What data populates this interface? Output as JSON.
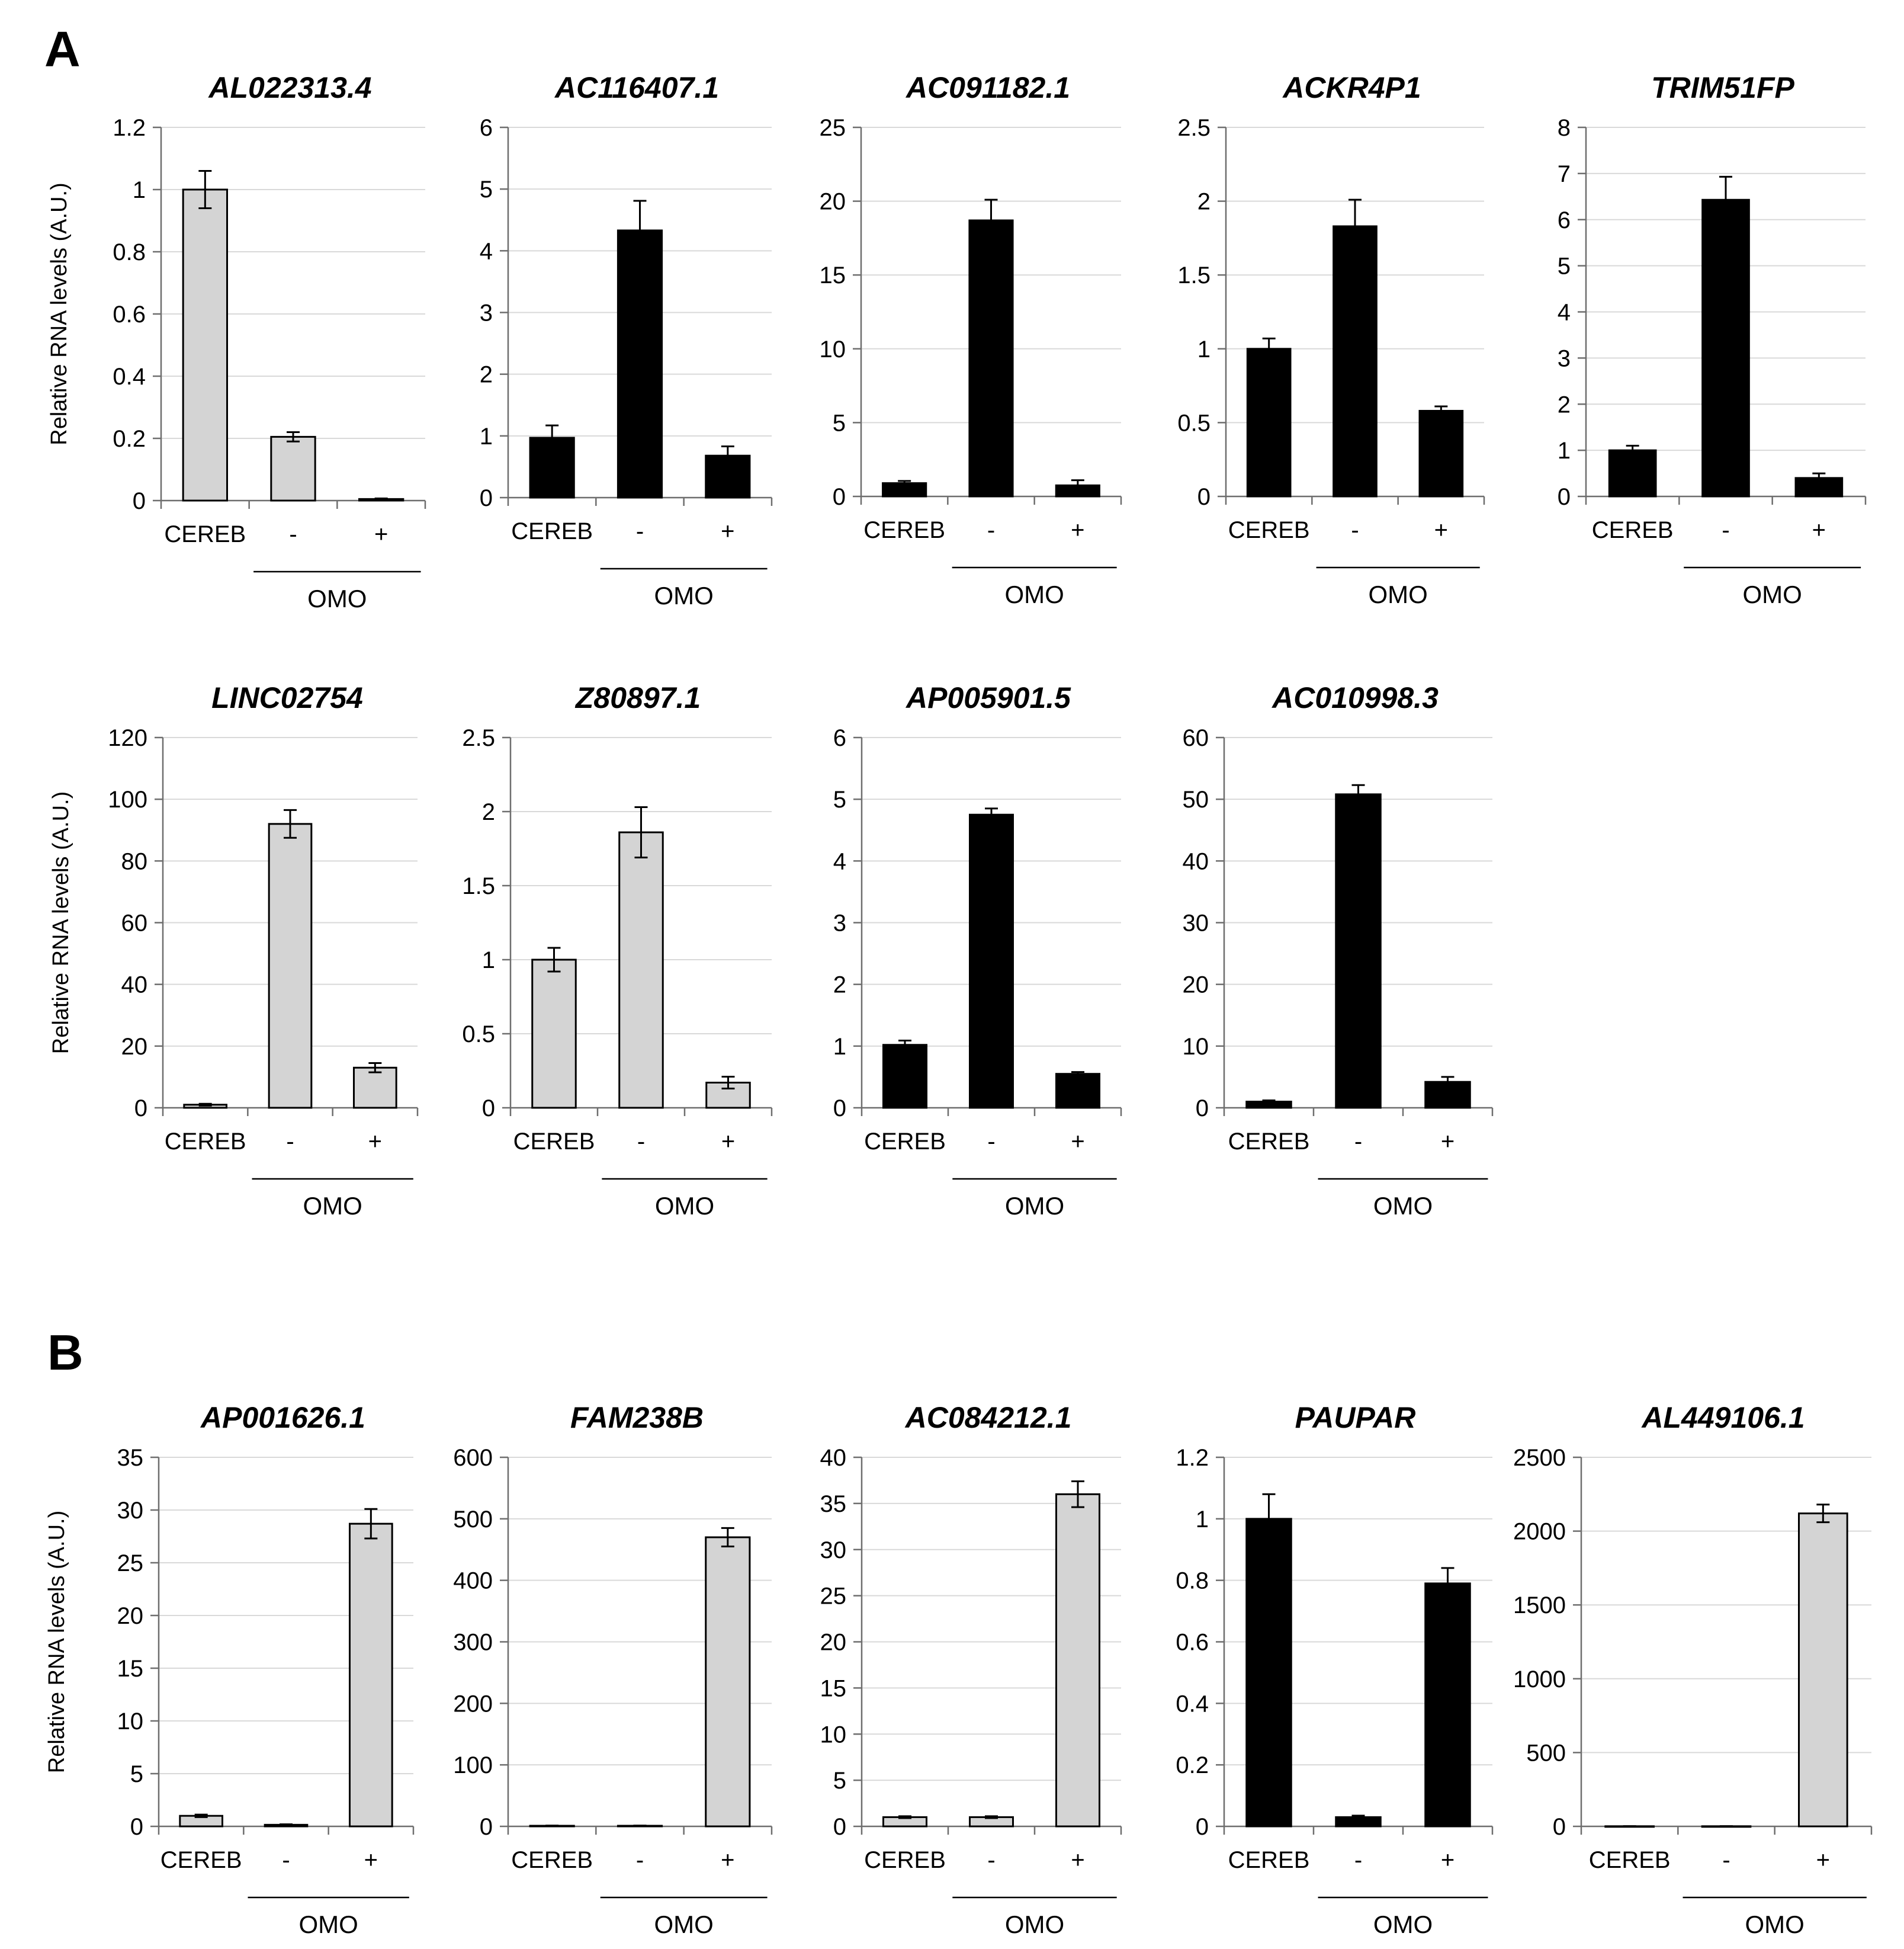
{
  "panels": [
    {
      "label": "A"
    },
    {
      "label": "B"
    }
  ],
  "colors": {
    "black": "#000000",
    "gray": "#d4d4d4",
    "grid": "#d9d9d9",
    "axis": "#6e6e6e"
  },
  "chart_data": [
    {
      "type": "bar",
      "title": "AL022313.4",
      "panel": "A",
      "categories": [
        "CEREB",
        "-",
        "+"
      ],
      "values": [
        1.0,
        0.205,
        0.005
      ],
      "errors": [
        0.06,
        0.015,
        0.002
      ],
      "ylim": [
        0,
        1.2
      ],
      "ticks": [
        "0",
        "0.2",
        "0.4",
        "0.6",
        "0.8",
        "1",
        "1.2"
      ],
      "tickvals": [
        0,
        0.2,
        0.4,
        0.6,
        0.8,
        1,
        1.2
      ],
      "bar_color": "gray",
      "ylabel": "Relative RNA levels (A.U.)",
      "group_label": "OMO"
    },
    {
      "type": "bar",
      "title": "AC116407.1",
      "panel": "A",
      "categories": [
        "CEREB",
        "-",
        "+"
      ],
      "values": [
        0.97,
        4.33,
        0.68
      ],
      "errors": [
        0.2,
        0.48,
        0.15
      ],
      "ylim": [
        0,
        6
      ],
      "ticks": [
        "0",
        "1",
        "2",
        "3",
        "4",
        "5",
        "6"
      ],
      "tickvals": [
        0,
        1,
        2,
        3,
        4,
        5,
        6
      ],
      "bar_color": "black",
      "ylabel": "",
      "group_label": "OMO"
    },
    {
      "type": "bar",
      "title": "AC091182.1",
      "panel": "A",
      "categories": [
        "CEREB",
        "-",
        "+"
      ],
      "values": [
        0.9,
        18.7,
        0.75
      ],
      "errors": [
        0.15,
        1.4,
        0.35
      ],
      "ylim": [
        0,
        25
      ],
      "ticks": [
        "0",
        "5",
        "10",
        "15",
        "20",
        "25"
      ],
      "tickvals": [
        0,
        5,
        10,
        15,
        20,
        25
      ],
      "bar_color": "black",
      "ylabel": "",
      "group_label": "OMO"
    },
    {
      "type": "bar",
      "title": "ACKR4P1",
      "panel": "A",
      "categories": [
        "CEREB",
        "-",
        "+"
      ],
      "values": [
        1.0,
        1.83,
        0.58
      ],
      "errors": [
        0.07,
        0.18,
        0.03
      ],
      "ylim": [
        0,
        2.5
      ],
      "ticks": [
        "0",
        "0.5",
        "1",
        "1.5",
        "2",
        "2.5"
      ],
      "tickvals": [
        0,
        0.5,
        1,
        1.5,
        2,
        2.5
      ],
      "bar_color": "black",
      "ylabel": "",
      "group_label": "OMO"
    },
    {
      "type": "bar",
      "title": "TRIM51FP",
      "panel": "A",
      "categories": [
        "CEREB",
        "-",
        "+"
      ],
      "values": [
        1.0,
        6.43,
        0.4
      ],
      "errors": [
        0.1,
        0.5,
        0.1
      ],
      "ylim": [
        0,
        8
      ],
      "ticks": [
        "0",
        "1",
        "2",
        "3",
        "4",
        "5",
        "6",
        "7",
        "8"
      ],
      "tickvals": [
        0,
        1,
        2,
        3,
        4,
        5,
        6,
        7,
        8
      ],
      "bar_color": "black",
      "ylabel": "",
      "group_label": "OMO"
    },
    {
      "type": "bar",
      "title": "LINC02754",
      "panel": "A",
      "categories": [
        "CEREB",
        "-",
        "+"
      ],
      "values": [
        1.0,
        92.0,
        13.0
      ],
      "errors": [
        0.3,
        4.5,
        1.5
      ],
      "ylim": [
        0,
        120
      ],
      "ticks": [
        "0",
        "20",
        "40",
        "60",
        "80",
        "100",
        "120"
      ],
      "tickvals": [
        0,
        20,
        40,
        60,
        80,
        100,
        120
      ],
      "bar_color": "gray",
      "ylabel": "Relative RNA levels (A.U.)",
      "group_label": "OMO"
    },
    {
      "type": "bar",
      "title": "Z80897.1",
      "panel": "A",
      "categories": [
        "CEREB",
        "-",
        "+"
      ],
      "values": [
        1.0,
        1.86,
        0.17
      ],
      "errors": [
        0.08,
        0.17,
        0.04
      ],
      "ylim": [
        0,
        2.5
      ],
      "ticks": [
        "0",
        "0.5",
        "1",
        "1.5",
        "2",
        "2.5"
      ],
      "tickvals": [
        0,
        0.5,
        1,
        1.5,
        2,
        2.5
      ],
      "bar_color": "gray",
      "ylabel": "",
      "group_label": "OMO"
    },
    {
      "type": "bar",
      "title": "AP005901.5",
      "panel": "A",
      "categories": [
        "CEREB",
        "-",
        "+"
      ],
      "values": [
        1.02,
        4.75,
        0.55
      ],
      "errors": [
        0.07,
        0.1,
        0.03
      ],
      "ylim": [
        0,
        6
      ],
      "ticks": [
        "0",
        "1",
        "2",
        "3",
        "4",
        "5",
        "6"
      ],
      "tickvals": [
        0,
        1,
        2,
        3,
        4,
        5,
        6
      ],
      "bar_color": "black",
      "ylabel": "",
      "group_label": "OMO"
    },
    {
      "type": "bar",
      "title": "AC010998.3",
      "panel": "A",
      "categories": [
        "CEREB",
        "-",
        "+"
      ],
      "values": [
        1.0,
        50.8,
        4.2
      ],
      "errors": [
        0.2,
        1.5,
        0.8
      ],
      "ylim": [
        0,
        60
      ],
      "ticks": [
        "0",
        "10",
        "20",
        "30",
        "40",
        "50",
        "60"
      ],
      "tickvals": [
        0,
        10,
        20,
        30,
        40,
        50,
        60
      ],
      "bar_color": "black",
      "ylabel": "",
      "group_label": "OMO"
    },
    {
      "type": "bar",
      "title": "AP001626.1",
      "panel": "B",
      "categories": [
        "CEREB",
        "-",
        "+"
      ],
      "values": [
        1.0,
        0.15,
        28.7
      ],
      "errors": [
        0.12,
        0.05,
        1.4
      ],
      "ylim": [
        0,
        35
      ],
      "ticks": [
        "0",
        "5",
        "10",
        "15",
        "20",
        "25",
        "30",
        "35"
      ],
      "tickvals": [
        0,
        5,
        10,
        15,
        20,
        25,
        30,
        35
      ],
      "bar_color": "gray",
      "ylabel": "Relative RNA levels (A.U.)",
      "group_label": "OMO"
    },
    {
      "type": "bar",
      "title": "FAM238B",
      "panel": "B",
      "categories": [
        "CEREB",
        "-",
        "+"
      ],
      "values": [
        1.0,
        1.0,
        470
      ],
      "errors": [
        0.3,
        0.3,
        15
      ],
      "ylim": [
        0,
        600
      ],
      "ticks": [
        "0",
        "100",
        "200",
        "300",
        "400",
        "500",
        "600"
      ],
      "tickvals": [
        0,
        100,
        200,
        300,
        400,
        500,
        600
      ],
      "bar_color": "gray",
      "ylabel": "",
      "group_label": "OMO"
    },
    {
      "type": "bar",
      "title": "AC084212.1",
      "panel": "B",
      "categories": [
        "CEREB",
        "-",
        "+"
      ],
      "values": [
        1.0,
        1.0,
        36.0
      ],
      "errors": [
        0.1,
        0.1,
        1.4
      ],
      "ylim": [
        0,
        40
      ],
      "ticks": [
        "0",
        "5",
        "10",
        "15",
        "20",
        "25",
        "30",
        "35",
        "40"
      ],
      "tickvals": [
        0,
        5,
        10,
        15,
        20,
        25,
        30,
        35,
        40
      ],
      "bar_color": "gray",
      "ylabel": "",
      "group_label": "OMO"
    },
    {
      "type": "bar",
      "title": "PAUPAR",
      "panel": "B",
      "categories": [
        "CEREB",
        "-",
        "+"
      ],
      "values": [
        1.0,
        0.03,
        0.79
      ],
      "errors": [
        0.08,
        0.005,
        0.05
      ],
      "ylim": [
        0,
        1.2
      ],
      "ticks": [
        "0",
        "0.2",
        "0.4",
        "0.6",
        "0.8",
        "1",
        "1.2"
      ],
      "tickvals": [
        0,
        0.2,
        0.4,
        0.6,
        0.8,
        1,
        1.2
      ],
      "bar_color": "black",
      "ylabel": "",
      "group_label": "OMO"
    },
    {
      "type": "bar",
      "title": "AL449106.1",
      "panel": "B",
      "categories": [
        "CEREB",
        "-",
        "+"
      ],
      "values": [
        1.0,
        1.0,
        2120
      ],
      "errors": [
        0.5,
        0.5,
        60
      ],
      "ylim": [
        0,
        2500
      ],
      "ticks": [
        "0",
        "500",
        "1000",
        "1500",
        "2000",
        "2500"
      ],
      "tickvals": [
        0,
        500,
        1000,
        1500,
        2000,
        2500
      ],
      "bar_color": "gray",
      "ylabel": "",
      "group_label": "OMO"
    }
  ]
}
